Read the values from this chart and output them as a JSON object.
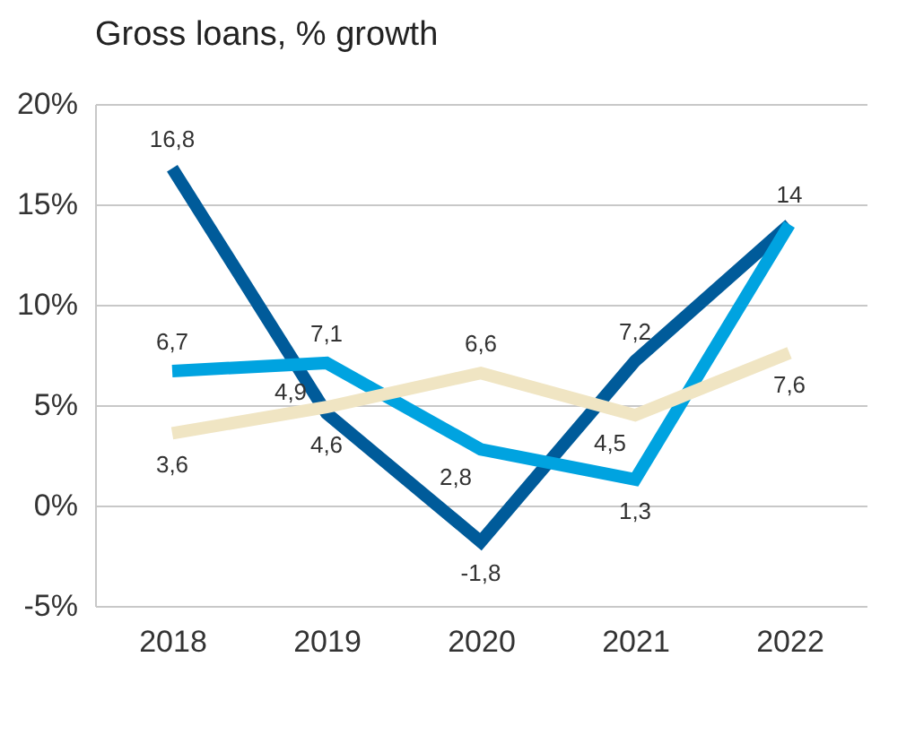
{
  "chart_data": {
    "type": "line",
    "title": "Gross loans, % growth",
    "categories": [
      "2018",
      "2019",
      "2020",
      "2021",
      "2022"
    ],
    "series": [
      {
        "color": "#005b9a",
        "values": [
          16.8,
          4.6,
          -1.8,
          7.2,
          14
        ],
        "value_labels": [
          "16,8",
          "4,6",
          "-1,8",
          "7,2",
          "14"
        ]
      },
      {
        "color": "#00a3e0",
        "values": [
          6.7,
          7.1,
          2.8,
          1.3,
          14
        ],
        "value_labels": [
          "6,7",
          "7,1",
          "2,8",
          "1,3",
          null
        ]
      },
      {
        "color": "#f0e5c3",
        "values": [
          3.6,
          4.9,
          6.6,
          4.5,
          7.6
        ],
        "value_labels": [
          "3,6",
          "4,9",
          "6,6",
          "4,5",
          "7,6"
        ]
      }
    ],
    "ylim": [
      -5,
      20
    ],
    "yticks": [
      {
        "value": -5,
        "label": "-5%"
      },
      {
        "value": 0,
        "label": "0%"
      },
      {
        "value": 5,
        "label": "5%"
      },
      {
        "value": 10,
        "label": "10%"
      },
      {
        "value": 15,
        "label": "15%"
      },
      {
        "value": 20,
        "label": "20%"
      }
    ],
    "grid": "y",
    "legend": false,
    "marker": "none",
    "line_style": "solid"
  }
}
